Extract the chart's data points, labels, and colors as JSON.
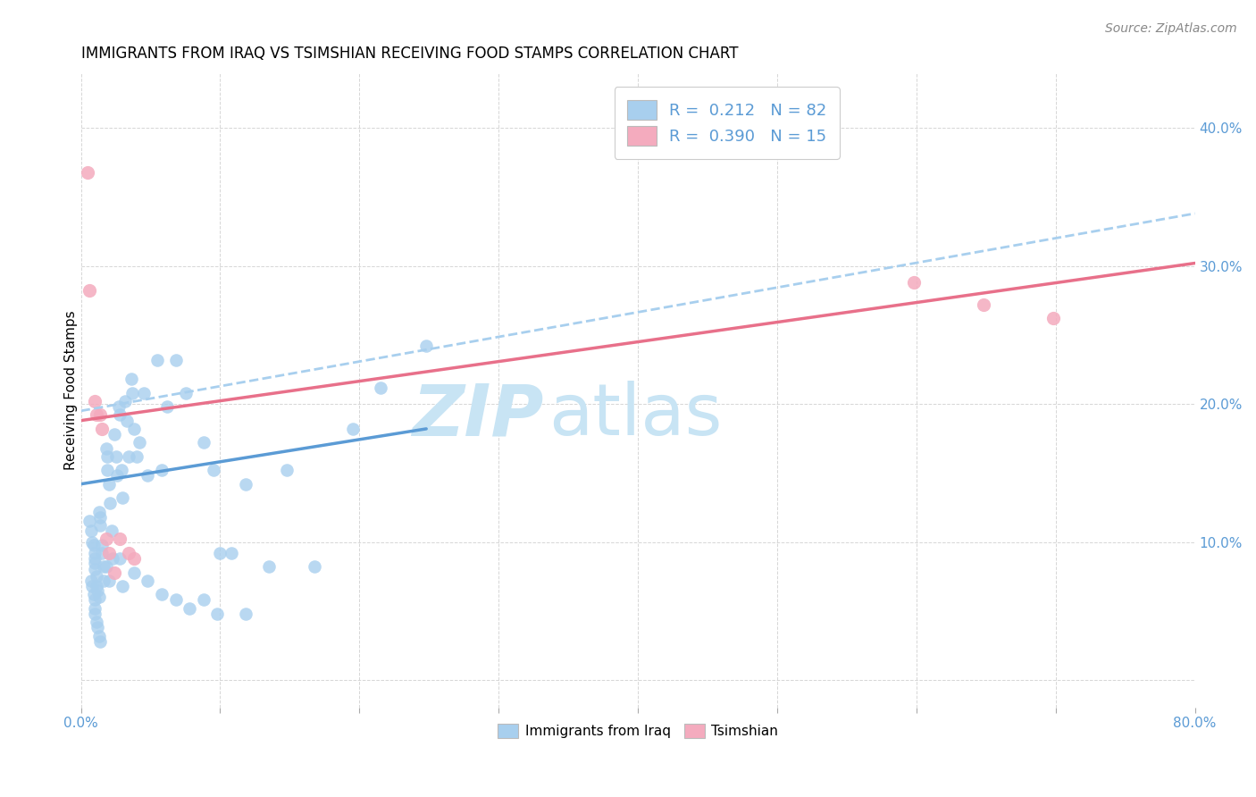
{
  "title": "IMMIGRANTS FROM IRAQ VS TSIMSHIAN RECEIVING FOOD STAMPS CORRELATION CHART",
  "source": "Source: ZipAtlas.com",
  "ylabel": "Receiving Food Stamps",
  "xlim": [
    0.0,
    0.8
  ],
  "ylim": [
    -0.02,
    0.44
  ],
  "yticks": [
    0.0,
    0.1,
    0.2,
    0.3,
    0.4
  ],
  "ytick_labels": [
    "",
    "10.0%",
    "20.0%",
    "30.0%",
    "40.0%"
  ],
  "xticks": [
    0.0,
    0.1,
    0.2,
    0.3,
    0.4,
    0.5,
    0.6,
    0.7,
    0.8
  ],
  "xtick_labels": [
    "0.0%",
    "",
    "",
    "",
    "",
    "",
    "",
    "",
    "80.0%"
  ],
  "iraq_color": "#A8CFEE",
  "tsimshian_color": "#F4ABBE",
  "iraq_line_color": "#5B9BD5",
  "tsimshian_line_color": "#E8708A",
  "dashed_line_color": "#A8CFEE",
  "iraq_scatter_x": [
    0.006,
    0.007,
    0.008,
    0.009,
    0.01,
    0.01,
    0.01,
    0.01,
    0.011,
    0.011,
    0.012,
    0.013,
    0.013,
    0.014,
    0.014,
    0.015,
    0.015,
    0.016,
    0.016,
    0.018,
    0.019,
    0.019,
    0.02,
    0.021,
    0.022,
    0.023,
    0.024,
    0.025,
    0.026,
    0.027,
    0.028,
    0.029,
    0.03,
    0.032,
    0.033,
    0.034,
    0.036,
    0.037,
    0.038,
    0.04,
    0.042,
    0.045,
    0.048,
    0.055,
    0.058,
    0.062,
    0.068,
    0.075,
    0.088,
    0.095,
    0.1,
    0.108,
    0.118,
    0.135,
    0.148,
    0.168,
    0.195,
    0.215,
    0.248,
    0.007,
    0.008,
    0.009,
    0.01,
    0.01,
    0.01,
    0.011,
    0.012,
    0.013,
    0.014,
    0.018,
    0.02,
    0.028,
    0.03,
    0.038,
    0.048,
    0.058,
    0.068,
    0.078,
    0.088,
    0.098,
    0.118
  ],
  "iraq_scatter_y": [
    0.115,
    0.108,
    0.1,
    0.098,
    0.092,
    0.088,
    0.085,
    0.08,
    0.075,
    0.068,
    0.065,
    0.06,
    0.122,
    0.118,
    0.112,
    0.098,
    0.092,
    0.082,
    0.072,
    0.168,
    0.162,
    0.152,
    0.142,
    0.128,
    0.108,
    0.088,
    0.178,
    0.162,
    0.148,
    0.198,
    0.192,
    0.152,
    0.132,
    0.202,
    0.188,
    0.162,
    0.218,
    0.208,
    0.182,
    0.162,
    0.172,
    0.208,
    0.148,
    0.232,
    0.152,
    0.198,
    0.232,
    0.208,
    0.172,
    0.152,
    0.092,
    0.092,
    0.142,
    0.082,
    0.152,
    0.082,
    0.182,
    0.212,
    0.242,
    0.072,
    0.068,
    0.062,
    0.058,
    0.052,
    0.048,
    0.042,
    0.038,
    0.032,
    0.028,
    0.082,
    0.072,
    0.088,
    0.068,
    0.078,
    0.072,
    0.062,
    0.058,
    0.052,
    0.058,
    0.048,
    0.048
  ],
  "tsimshian_scatter_x": [
    0.005,
    0.006,
    0.01,
    0.011,
    0.014,
    0.015,
    0.018,
    0.02,
    0.024,
    0.028,
    0.034,
    0.038,
    0.598,
    0.648,
    0.698
  ],
  "tsimshian_scatter_y": [
    0.368,
    0.282,
    0.202,
    0.192,
    0.192,
    0.182,
    0.102,
    0.092,
    0.078,
    0.102,
    0.092,
    0.088,
    0.288,
    0.272,
    0.262
  ],
  "iraq_line_x": [
    0.0,
    0.248
  ],
  "iraq_line_y": [
    0.142,
    0.182
  ],
  "tsimshian_line_x": [
    0.0,
    0.8
  ],
  "tsimshian_line_y": [
    0.188,
    0.302
  ],
  "dashed_line_x": [
    0.0,
    0.8
  ],
  "dashed_line_y": [
    0.195,
    0.338
  ]
}
